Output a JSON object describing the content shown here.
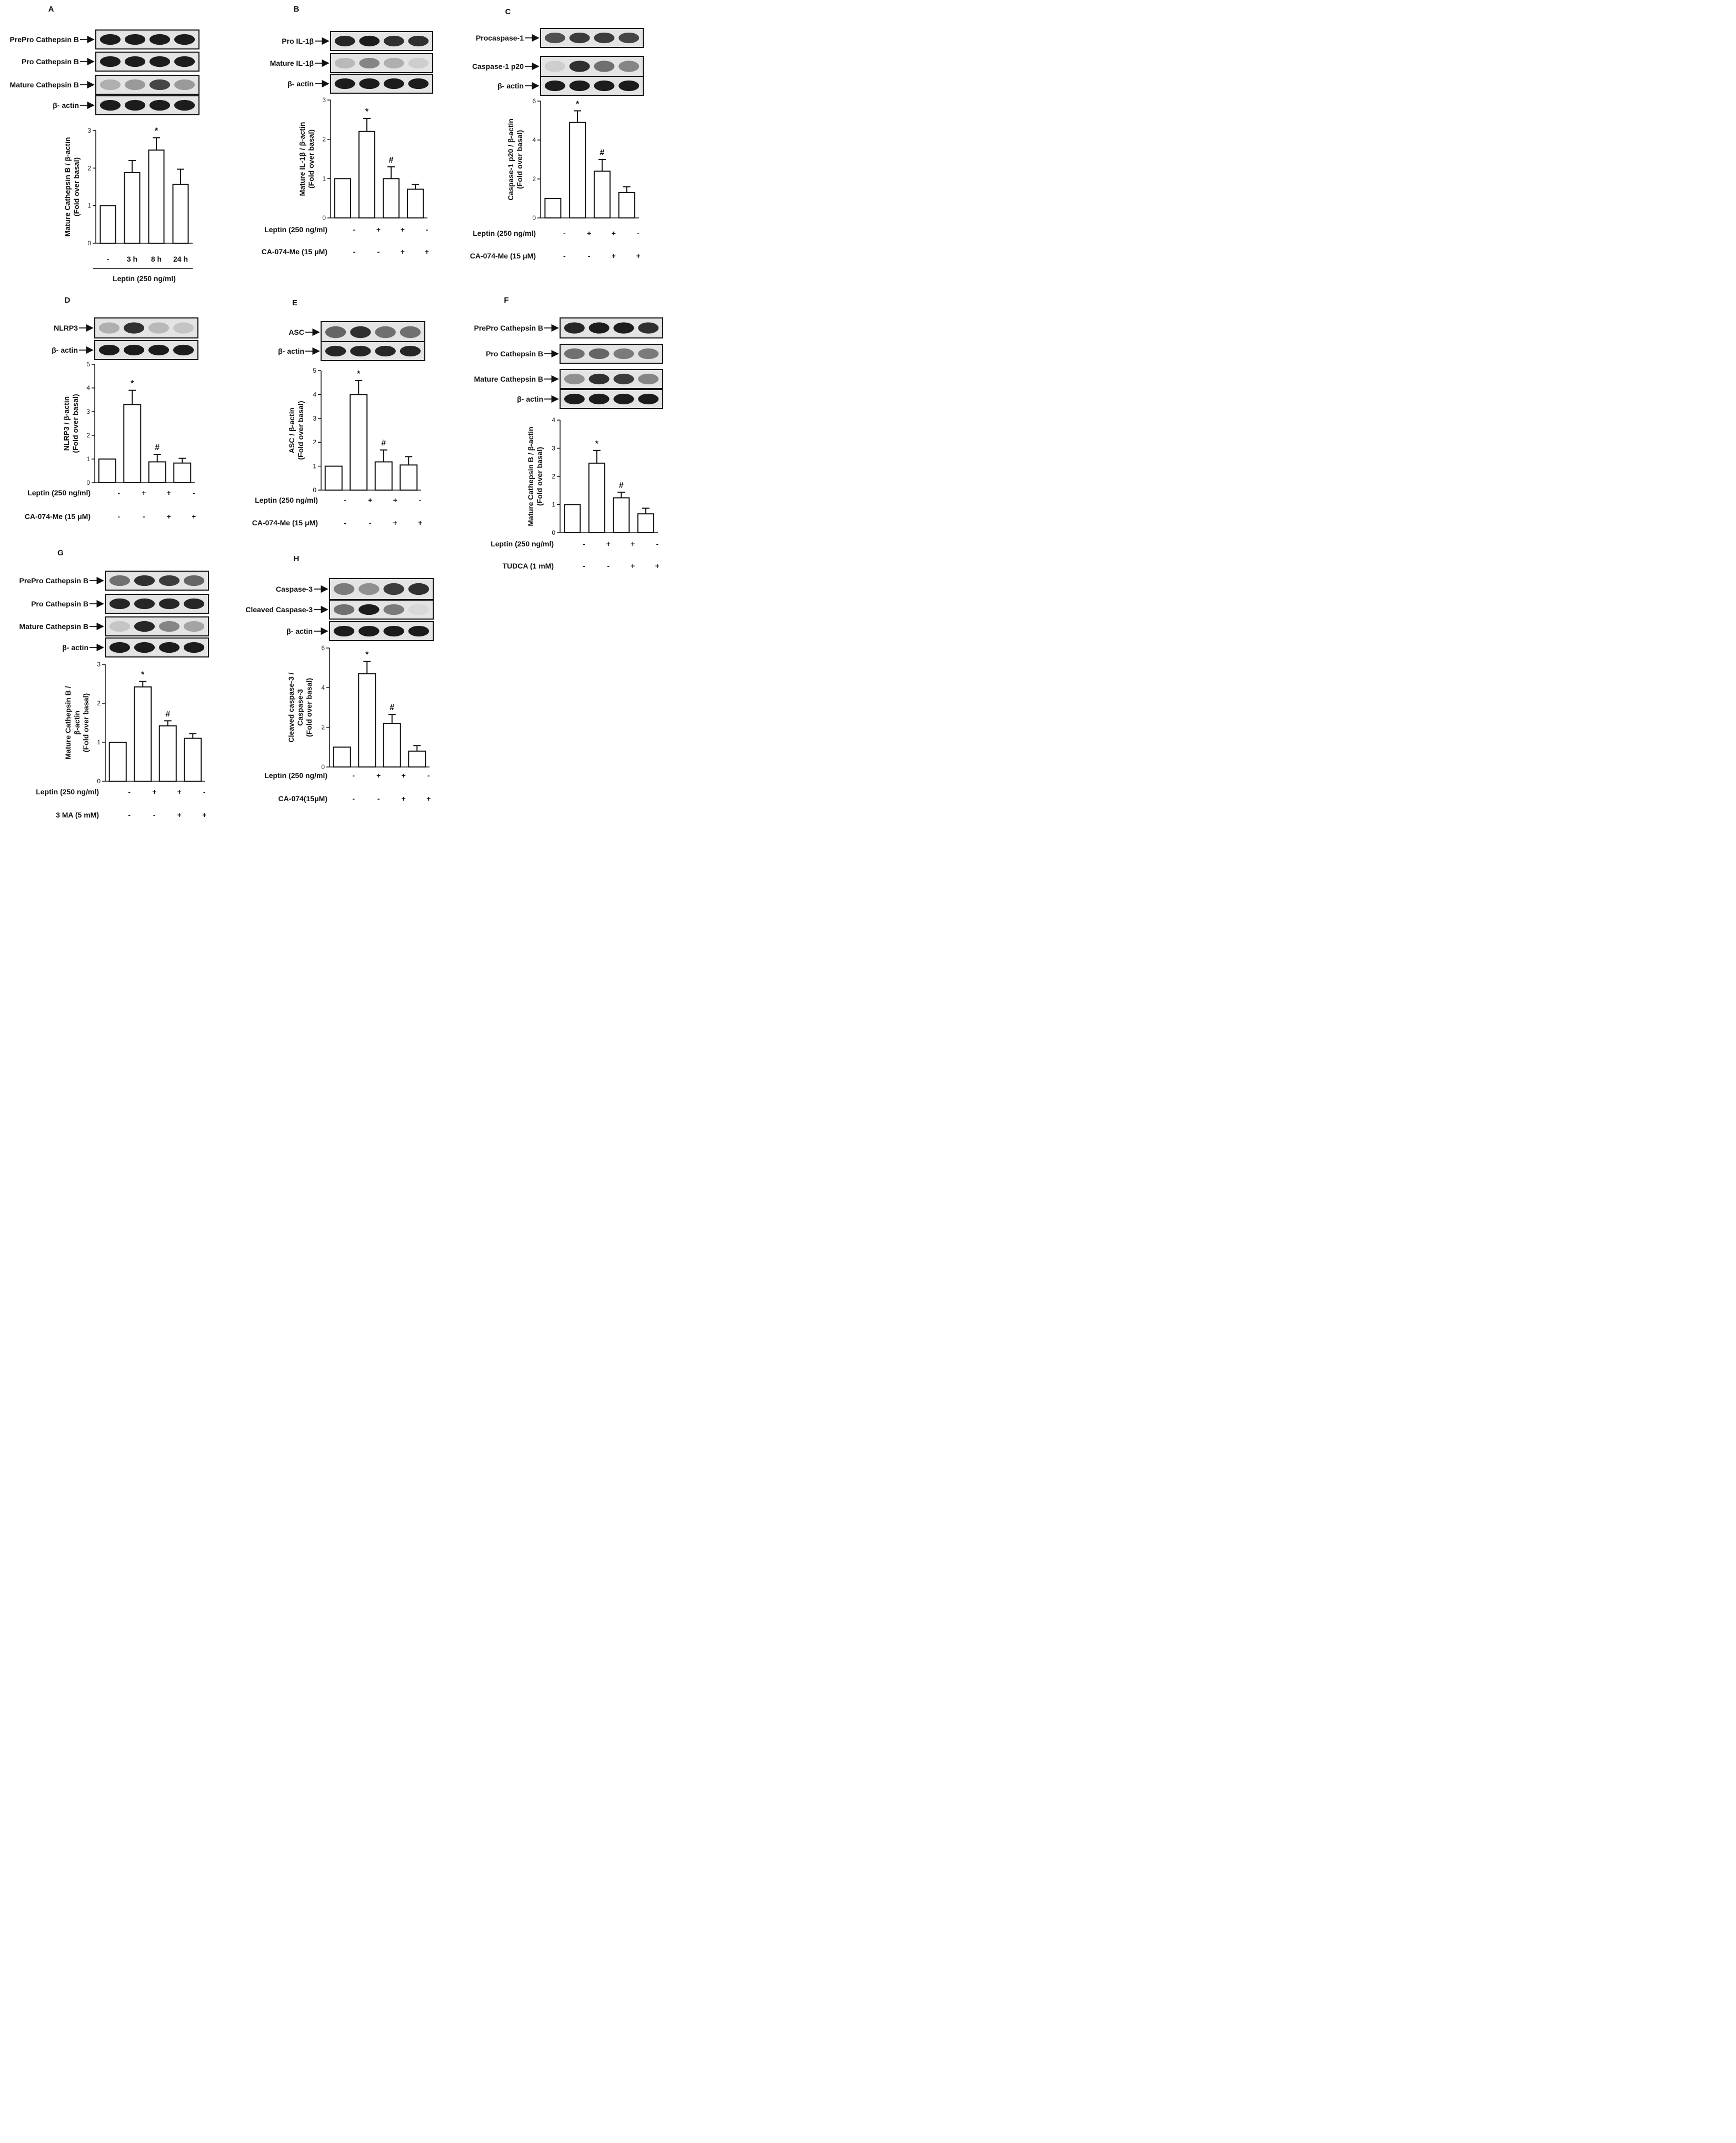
{
  "chart_data": [
    {
      "type": "bar",
      "panel_letter": "A",
      "blot_labels": [
        "PrePro Cathepsin B",
        "Pro Cathepsin B",
        "Mature Cathepsin B",
        "β- actin"
      ],
      "categories": [
        "-",
        "3 h",
        "8 h",
        "24 h"
      ],
      "values": [
        1.0,
        1.88,
        2.48,
        1.57
      ],
      "errors": [
        0,
        0.32,
        0.33,
        0.4
      ],
      "annotations": [
        "",
        "",
        "*",
        ""
      ],
      "ylabel_line1": "Mature Cathepsin B / β-actin",
      "ylabel_line2": "(Fold over basal)",
      "ylim": [
        0,
        3
      ],
      "yticks": [
        "0",
        "1",
        "2",
        "3"
      ],
      "group_label": "Leptin (250 ng/ml)"
    },
    {
      "type": "bar",
      "panel_letter": "B",
      "blot_labels": [
        "Pro IL-1β",
        "Mature IL-1β",
        "β- actin"
      ],
      "treatments": [
        {
          "label": "Leptin (250 ng/ml)",
          "signs": [
            "-",
            "+",
            "+",
            "-"
          ]
        },
        {
          "label": "CA-074-Me (15 μM)",
          "signs": [
            "-",
            "-",
            "+",
            "+"
          ]
        }
      ],
      "values": [
        1.0,
        2.2,
        1.0,
        0.73
      ],
      "errors": [
        0,
        0.33,
        0.3,
        0.12
      ],
      "annotations": [
        "",
        "*",
        "#",
        ""
      ],
      "ylabel_line1": "Mature IL-1β / β-actin",
      "ylabel_line2": "(Fold over basal)",
      "ylim": [
        0,
        3
      ],
      "yticks": [
        "0",
        "1",
        "2",
        "3"
      ]
    },
    {
      "type": "bar",
      "panel_letter": "C",
      "blot_labels": [
        "Procaspase-1",
        "Caspase-1 p20",
        "β- actin"
      ],
      "treatments": [
        {
          "label": "Leptin (250 ng/ml)",
          "signs": [
            "-",
            "+",
            "+",
            "-"
          ]
        },
        {
          "label": "CA-074-Me (15 μM)",
          "signs": [
            "-",
            "-",
            "+",
            "+"
          ]
        }
      ],
      "values": [
        1.0,
        4.9,
        2.4,
        1.3
      ],
      "errors": [
        0,
        0.6,
        0.6,
        0.3
      ],
      "annotations": [
        "",
        "*",
        "#",
        ""
      ],
      "ylabel_line1": "Caspase-1 p20 / β-actin",
      "ylabel_line2": "(Fold over basal)",
      "ylim": [
        0,
        6
      ],
      "yticks": [
        "0",
        "2",
        "4",
        "6"
      ]
    },
    {
      "type": "bar",
      "panel_letter": "D",
      "blot_labels": [
        "NLRP3",
        "β- actin"
      ],
      "treatments": [
        {
          "label": "Leptin (250 ng/ml)",
          "signs": [
            "-",
            "+",
            "+",
            "-"
          ]
        },
        {
          "label": "CA-074-Me (15 μM)",
          "signs": [
            "-",
            "-",
            "+",
            "+"
          ]
        }
      ],
      "values": [
        1.0,
        3.3,
        0.88,
        0.83
      ],
      "errors": [
        0,
        0.6,
        0.32,
        0.2
      ],
      "annotations": [
        "",
        "*",
        "#",
        ""
      ],
      "ylabel_line1": "NLRP3 / β-actin",
      "ylabel_line2": "(Fold over basal)",
      "ylim": [
        0,
        5
      ],
      "yticks": [
        "0",
        "1",
        "2",
        "3",
        "4",
        "5"
      ]
    },
    {
      "type": "bar",
      "panel_letter": "E",
      "blot_labels": [
        "ASC",
        "β- actin"
      ],
      "treatments": [
        {
          "label": "Leptin (250 ng/ml)",
          "signs": [
            "-",
            "+",
            "+",
            "-"
          ]
        },
        {
          "label": "CA-074-Me (15 μM)",
          "signs": [
            "-",
            "-",
            "+",
            "+"
          ]
        }
      ],
      "values": [
        1.0,
        4.0,
        1.18,
        1.05
      ],
      "errors": [
        0,
        0.58,
        0.5,
        0.35
      ],
      "annotations": [
        "",
        "*",
        "#",
        ""
      ],
      "ylabel_line1": "ASC / β-actin",
      "ylabel_line2": "(Fold over basal)",
      "ylim": [
        0,
        5
      ],
      "yticks": [
        "0",
        "1",
        "2",
        "3",
        "4",
        "5"
      ]
    },
    {
      "type": "bar",
      "panel_letter": "F",
      "blot_labels": [
        "PrePro Cathepsin B",
        "Pro Cathepsin B",
        "Mature Cathepsin B",
        "β- actin"
      ],
      "treatments": [
        {
          "label": "Leptin (250 ng/ml)",
          "signs": [
            "-",
            "+",
            "+",
            "-"
          ]
        },
        {
          "label": "TUDCA (1 mM)",
          "signs": [
            "-",
            "-",
            "+",
            "+"
          ]
        }
      ],
      "values": [
        1.0,
        2.47,
        1.24,
        0.67
      ],
      "errors": [
        0,
        0.45,
        0.2,
        0.2
      ],
      "annotations": [
        "",
        "*",
        "#",
        ""
      ],
      "ylabel_line1": "Mature Cathepsin B / β-actin",
      "ylabel_line2": "(Fold over basal)",
      "ylim": [
        0,
        4
      ],
      "yticks": [
        "0",
        "1",
        "2",
        "3",
        "4"
      ]
    },
    {
      "type": "bar",
      "panel_letter": "G",
      "blot_labels": [
        "PrePro Cathepsin B",
        "Pro Cathepsin B",
        "Mature Cathepsin B",
        "β- actin"
      ],
      "treatments": [
        {
          "label": "Leptin (250 ng/ml)",
          "signs": [
            "-",
            "+",
            "+",
            "-"
          ]
        },
        {
          "label": "3 MA (5 mM)",
          "signs": [
            "-",
            "-",
            "+",
            "+"
          ]
        }
      ],
      "values": [
        1.0,
        2.42,
        1.42,
        1.1
      ],
      "errors": [
        0,
        0.14,
        0.13,
        0.12
      ],
      "annotations": [
        "",
        "*",
        "#",
        ""
      ],
      "ylabel_line1": "Mature Cathepsin B /",
      "ylabel_line2": "β-actin",
      "ylabel_line3": "(Fold over basal)",
      "ylim": [
        0,
        3
      ],
      "yticks": [
        "0",
        "1",
        "2",
        "3"
      ]
    },
    {
      "type": "bar",
      "panel_letter": "H",
      "blot_labels": [
        "Caspase-3",
        "Cleaved Caspase-3",
        "β- actin"
      ],
      "treatments": [
        {
          "label": "Leptin (250 ng/ml)",
          "signs": [
            "-",
            "+",
            "+",
            "-"
          ]
        },
        {
          "label": "CA-074(15μM)",
          "signs": [
            "-",
            "-",
            "+",
            "+"
          ]
        }
      ],
      "values": [
        1.0,
        4.7,
        2.2,
        0.8
      ],
      "errors": [
        0,
        0.62,
        0.45,
        0.28
      ],
      "annotations": [
        "",
        "*",
        "#",
        ""
      ],
      "ylabel_line1": "Cleaved caspase-3 /",
      "ylabel_line2": "Caspase-3",
      "ylabel_line3": "(Fold over basal)",
      "ylim": [
        0,
        6
      ],
      "yticks": [
        "0",
        "2",
        "4",
        "6"
      ]
    }
  ]
}
